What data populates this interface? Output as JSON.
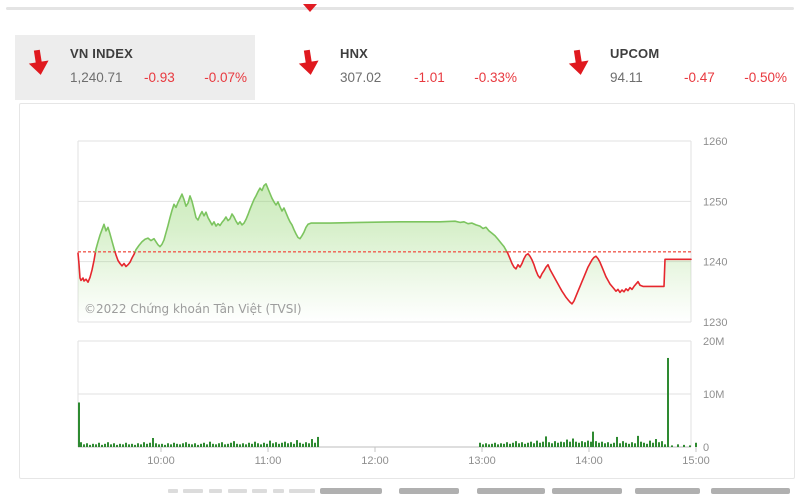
{
  "top_bar": {
    "triangle_color": "#e01b22"
  },
  "tabs": [
    {
      "id": "vnindex",
      "label": "VN INDEX",
      "value": "1,240.71",
      "change": "-0.93",
      "change_pct": "-0.07%",
      "selected": true
    },
    {
      "id": "hnx",
      "label": "HNX",
      "value": "307.02",
      "change": "-1.01",
      "change_pct": "-0.33%",
      "selected": false
    },
    {
      "id": "upcom",
      "label": "UPCOM",
      "value": "94.11",
      "change": "-0.47",
      "change_pct": "-0.50%",
      "selected": false
    }
  ],
  "colors": {
    "down_red": "#e8393f",
    "arrow_red": "#e0191f",
    "line_green": "#7cc45f",
    "line_red": "#e6272e",
    "area_green": "#7fce57",
    "vol_green": "#2e8a31",
    "grid": "#e2e2e2",
    "ref_line": "#ef5c50",
    "axis_text": "#8f8f8f"
  },
  "chart": {
    "copyright": "©2022 Chứng khoán Tân Việt (TVSI)"
  },
  "chart_data": {
    "type": "line",
    "title": "VN-Index intraday with volume",
    "reference_value": 1241.64,
    "close_value": 1240.71,
    "y_axis": {
      "ticks": [
        1260,
        1250,
        1240,
        1230
      ],
      "range": [
        1230,
        1260
      ],
      "grid": true
    },
    "x_axis": {
      "labels": [
        "10:00",
        "11:00",
        "12:00",
        "13:00",
        "14:00",
        "15:00"
      ]
    },
    "price_points": [
      [
        78,
        1241.4
      ],
      [
        79,
        1239.6
      ],
      [
        80,
        1237.3
      ],
      [
        81,
        1236.9
      ],
      [
        83,
        1237.3
      ],
      [
        84,
        1236.8
      ],
      [
        86,
        1237.1
      ],
      [
        88,
        1236.6
      ],
      [
        90,
        1237.4
      ],
      [
        92,
        1238.6
      ],
      [
        94,
        1240.2
      ],
      [
        96,
        1242.1
      ],
      [
        98,
        1243.3
      ],
      [
        100,
        1244.4
      ],
      [
        102,
        1245.3
      ],
      [
        104,
        1246.2
      ],
      [
        106,
        1245.1
      ],
      [
        108,
        1245.7
      ],
      [
        110,
        1244.6
      ],
      [
        112,
        1243.4
      ],
      [
        114,
        1242.2
      ],
      [
        116,
        1241.1
      ],
      [
        118,
        1240.2
      ],
      [
        120,
        1239.7
      ],
      [
        122,
        1239.3
      ],
      [
        124,
        1239.7
      ],
      [
        126,
        1239.2
      ],
      [
        128,
        1239.5
      ],
      [
        130,
        1239.9
      ],
      [
        132,
        1240.6
      ],
      [
        134,
        1241.2
      ],
      [
        136,
        1242.0
      ],
      [
        139,
        1242.7
      ],
      [
        142,
        1243.3
      ],
      [
        145,
        1243.7
      ],
      [
        148,
        1243.9
      ],
      [
        151,
        1243.5
      ],
      [
        154,
        1243.8
      ],
      [
        156,
        1243.3
      ],
      [
        158,
        1242.8
      ],
      [
        160,
        1242.5
      ],
      [
        162,
        1242.9
      ],
      [
        164,
        1243.6
      ],
      [
        166,
        1244.8
      ],
      [
        168,
        1246.0
      ],
      [
        170,
        1247.3
      ],
      [
        172,
        1248.5
      ],
      [
        174,
        1249.5
      ],
      [
        176,
        1249.0
      ],
      [
        178,
        1249.8
      ],
      [
        180,
        1250.5
      ],
      [
        182,
        1251.2
      ],
      [
        184,
        1250.3
      ],
      [
        186,
        1249.2
      ],
      [
        188,
        1249.7
      ],
      [
        190,
        1250.9
      ],
      [
        192,
        1250.0
      ],
      [
        194,
        1248.7
      ],
      [
        196,
        1247.3
      ],
      [
        198,
        1246.9
      ],
      [
        200,
        1247.7
      ],
      [
        202,
        1248.3
      ],
      [
        204,
        1247.6
      ],
      [
        206,
        1248.2
      ],
      [
        208,
        1247.3
      ],
      [
        210,
        1246.7
      ],
      [
        212,
        1246.1
      ],
      [
        214,
        1246.6
      ],
      [
        216,
        1245.9
      ],
      [
        218,
        1246.3
      ],
      [
        220,
        1246.0
      ],
      [
        222,
        1246.5
      ],
      [
        224,
        1246.9
      ],
      [
        226,
        1247.4
      ],
      [
        228,
        1246.8
      ],
      [
        230,
        1247.1
      ],
      [
        232,
        1247.9
      ],
      [
        234,
        1247.4
      ],
      [
        236,
        1246.7
      ],
      [
        238,
        1246.2
      ],
      [
        240,
        1246.6
      ],
      [
        242,
        1246.1
      ],
      [
        244,
        1246.4
      ],
      [
        246,
        1247.0
      ],
      [
        248,
        1247.8
      ],
      [
        250,
        1248.7
      ],
      [
        252,
        1249.5
      ],
      [
        254,
        1250.3
      ],
      [
        256,
        1250.9
      ],
      [
        258,
        1251.6
      ],
      [
        260,
        1252.2
      ],
      [
        262,
        1251.8
      ],
      [
        264,
        1252.6
      ],
      [
        266,
        1252.9
      ],
      [
        268,
        1252.1
      ],
      [
        270,
        1251.3
      ],
      [
        272,
        1250.5
      ],
      [
        274,
        1249.9
      ],
      [
        276,
        1249.4
      ],
      [
        278,
        1249.9
      ],
      [
        280,
        1249.1
      ],
      [
        282,
        1248.4
      ],
      [
        284,
        1248.9
      ],
      [
        286,
        1248.1
      ],
      [
        288,
        1247.3
      ],
      [
        290,
        1246.6
      ],
      [
        292,
        1246.1
      ],
      [
        294,
        1245.3
      ],
      [
        296,
        1244.6
      ],
      [
        298,
        1244.0
      ],
      [
        300,
        1243.8
      ],
      [
        302,
        1244.3
      ],
      [
        304,
        1244.9
      ],
      [
        306,
        1245.7
      ],
      [
        308,
        1246.2
      ],
      [
        311,
        1246.4
      ],
      [
        330,
        1246.4
      ],
      [
        360,
        1246.5
      ],
      [
        400,
        1246.6
      ],
      [
        440,
        1246.6
      ],
      [
        455,
        1246.7
      ],
      [
        460,
        1246.5
      ],
      [
        464,
        1246.6
      ],
      [
        468,
        1246.3
      ],
      [
        472,
        1246.4
      ],
      [
        476,
        1246.1
      ],
      [
        480,
        1245.9
      ],
      [
        483,
        1245.5
      ],
      [
        486,
        1245.7
      ],
      [
        489,
        1245.1
      ],
      [
        492,
        1244.7
      ],
      [
        495,
        1244.3
      ],
      [
        498,
        1243.7
      ],
      [
        501,
        1243.1
      ],
      [
        504,
        1242.5
      ],
      [
        506,
        1241.9
      ],
      [
        508,
        1241.3
      ],
      [
        510,
        1240.5
      ],
      [
        512,
        1239.7
      ],
      [
        514,
        1239.1
      ],
      [
        516,
        1238.8
      ],
      [
        518,
        1239.5
      ],
      [
        520,
        1239.1
      ],
      [
        522,
        1239.7
      ],
      [
        524,
        1240.5
      ],
      [
        526,
        1241.1
      ],
      [
        528,
        1241.3
      ],
      [
        530,
        1240.9
      ],
      [
        532,
        1240.3
      ],
      [
        534,
        1239.5
      ],
      [
        536,
        1238.5
      ],
      [
        538,
        1237.7
      ],
      [
        540,
        1237.3
      ],
      [
        542,
        1238.0
      ],
      [
        544,
        1238.5
      ],
      [
        546,
        1239.1
      ],
      [
        548,
        1239.5
      ],
      [
        550,
        1238.7
      ],
      [
        552,
        1238.1
      ],
      [
        554,
        1237.5
      ],
      [
        556,
        1236.9
      ],
      [
        558,
        1236.3
      ],
      [
        560,
        1235.7
      ],
      [
        562,
        1235.1
      ],
      [
        564,
        1234.6
      ],
      [
        566,
        1234.1
      ],
      [
        568,
        1233.7
      ],
      [
        570,
        1233.3
      ],
      [
        572,
        1233.0
      ],
      [
        574,
        1233.5
      ],
      [
        576,
        1234.3
      ],
      [
        578,
        1235.1
      ],
      [
        580,
        1235.9
      ],
      [
        582,
        1236.7
      ],
      [
        584,
        1237.5
      ],
      [
        586,
        1238.3
      ],
      [
        588,
        1239.1
      ],
      [
        590,
        1239.7
      ],
      [
        592,
        1240.3
      ],
      [
        594,
        1240.7
      ],
      [
        596,
        1240.9
      ],
      [
        598,
        1240.5
      ],
      [
        600,
        1239.9
      ],
      [
        602,
        1239.1
      ],
      [
        604,
        1238.3
      ],
      [
        606,
        1237.5
      ],
      [
        608,
        1236.9
      ],
      [
        610,
        1236.3
      ],
      [
        612,
        1235.9
      ],
      [
        614,
        1235.5
      ],
      [
        616,
        1235.1
      ],
      [
        618,
        1235.4
      ],
      [
        620,
        1234.9
      ],
      [
        622,
        1235.3
      ],
      [
        624,
        1235.0
      ],
      [
        626,
        1235.5
      ],
      [
        628,
        1235.2
      ],
      [
        630,
        1235.7
      ],
      [
        632,
        1235.4
      ],
      [
        634,
        1235.9
      ],
      [
        636,
        1236.3
      ],
      [
        638,
        1236.7
      ],
      [
        640,
        1236.1
      ],
      [
        643,
        1235.9
      ],
      [
        664,
        1235.9
      ],
      [
        665,
        1240.4
      ],
      [
        691,
        1240.4
      ]
    ],
    "volume": {
      "type": "bar",
      "ticks": [
        "20M",
        "10M",
        "0"
      ],
      "tick_values": [
        20,
        10,
        0
      ],
      "bars": [
        [
          79,
          8.4
        ],
        [
          81,
          0.9
        ],
        [
          84,
          0.5
        ],
        [
          87,
          0.7
        ],
        [
          90,
          0.4
        ],
        [
          93,
          0.6
        ],
        [
          96,
          0.5
        ],
        [
          99,
          0.8
        ],
        [
          102,
          0.4
        ],
        [
          105,
          0.6
        ],
        [
          108,
          0.9
        ],
        [
          111,
          0.5
        ],
        [
          114,
          0.7
        ],
        [
          117,
          0.4
        ],
        [
          120,
          0.6
        ],
        [
          123,
          0.5
        ],
        [
          126,
          0.8
        ],
        [
          129,
          0.5
        ],
        [
          132,
          0.6
        ],
        [
          135,
          0.4
        ],
        [
          138,
          0.7
        ],
        [
          141,
          0.5
        ],
        [
          144,
          0.9
        ],
        [
          147,
          0.6
        ],
        [
          150,
          0.8
        ],
        [
          153,
          1.7
        ],
        [
          156,
          0.7
        ],
        [
          159,
          0.5
        ],
        [
          162,
          0.6
        ],
        [
          165,
          0.4
        ],
        [
          168,
          0.7
        ],
        [
          171,
          0.5
        ],
        [
          174,
          0.8
        ],
        [
          177,
          0.6
        ],
        [
          180,
          0.5
        ],
        [
          183,
          0.7
        ],
        [
          186,
          0.9
        ],
        [
          189,
          0.6
        ],
        [
          192,
          0.5
        ],
        [
          195,
          0.7
        ],
        [
          198,
          0.4
        ],
        [
          201,
          0.6
        ],
        [
          204,
          0.8
        ],
        [
          207,
          0.5
        ],
        [
          210,
          1.0
        ],
        [
          213,
          0.6
        ],
        [
          216,
          0.5
        ],
        [
          219,
          0.7
        ],
        [
          222,
          0.9
        ],
        [
          225,
          0.5
        ],
        [
          228,
          0.6
        ],
        [
          231,
          0.8
        ],
        [
          234,
          1.1
        ],
        [
          237,
          0.6
        ],
        [
          240,
          0.5
        ],
        [
          243,
          0.7
        ],
        [
          246,
          0.5
        ],
        [
          249,
          0.8
        ],
        [
          252,
          0.6
        ],
        [
          255,
          1.0
        ],
        [
          258,
          0.7
        ],
        [
          261,
          0.5
        ],
        [
          264,
          0.8
        ],
        [
          267,
          0.6
        ],
        [
          270,
          1.2
        ],
        [
          273,
          0.7
        ],
        [
          276,
          0.9
        ],
        [
          279,
          0.6
        ],
        [
          282,
          0.8
        ],
        [
          285,
          1.0
        ],
        [
          288,
          0.7
        ],
        [
          291,
          0.9
        ],
        [
          294,
          0.6
        ],
        [
          297,
          1.3
        ],
        [
          300,
          0.8
        ],
        [
          303,
          0.6
        ],
        [
          306,
          0.9
        ],
        [
          309,
          0.7
        ],
        [
          312,
          1.5
        ],
        [
          315,
          0.8
        ],
        [
          318,
          1.9
        ],
        [
          480,
          0.8
        ],
        [
          483,
          0.5
        ],
        [
          486,
          0.7
        ],
        [
          489,
          0.5
        ],
        [
          492,
          0.6
        ],
        [
          495,
          0.8
        ],
        [
          498,
          0.5
        ],
        [
          501,
          0.7
        ],
        [
          504,
          0.6
        ],
        [
          507,
          0.9
        ],
        [
          510,
          0.6
        ],
        [
          513,
          0.8
        ],
        [
          516,
          1.1
        ],
        [
          519,
          0.7
        ],
        [
          522,
          0.9
        ],
        [
          525,
          0.6
        ],
        [
          528,
          0.8
        ],
        [
          531,
          1.0
        ],
        [
          534,
          0.7
        ],
        [
          537,
          1.2
        ],
        [
          540,
          0.8
        ],
        [
          543,
          1.0
        ],
        [
          546,
          2.0
        ],
        [
          549,
          0.9
        ],
        [
          552,
          0.7
        ],
        [
          555,
          1.1
        ],
        [
          558,
          0.8
        ],
        [
          561,
          1.0
        ],
        [
          564,
          0.9
        ],
        [
          567,
          1.4
        ],
        [
          570,
          1.0
        ],
        [
          573,
          1.6
        ],
        [
          576,
          1.0
        ],
        [
          579,
          0.8
        ],
        [
          582,
          1.1
        ],
        [
          585,
          0.9
        ],
        [
          588,
          1.2
        ],
        [
          591,
          1.0
        ],
        [
          593,
          2.9
        ],
        [
          596,
          1.1
        ],
        [
          599,
          0.8
        ],
        [
          602,
          1.0
        ],
        [
          605,
          0.7
        ],
        [
          608,
          0.9
        ],
        [
          611,
          0.6
        ],
        [
          614,
          0.8
        ],
        [
          617,
          1.9
        ],
        [
          620,
          0.7
        ],
        [
          623,
          1.1
        ],
        [
          626,
          0.8
        ],
        [
          629,
          0.6
        ],
        [
          632,
          0.9
        ],
        [
          635,
          0.7
        ],
        [
          638,
          2.1
        ],
        [
          641,
          1.0
        ],
        [
          644,
          0.8
        ],
        [
          647,
          0.6
        ],
        [
          650,
          1.2
        ],
        [
          653,
          0.8
        ],
        [
          656,
          1.5
        ],
        [
          659,
          0.9
        ],
        [
          662,
          1.1
        ],
        [
          665,
          0.5
        ],
        [
          668,
          16.8
        ],
        [
          672,
          0.3
        ],
        [
          678,
          0.5
        ],
        [
          684,
          0.4
        ],
        [
          690,
          0.3
        ],
        [
          696,
          0.8
        ]
      ]
    }
  }
}
